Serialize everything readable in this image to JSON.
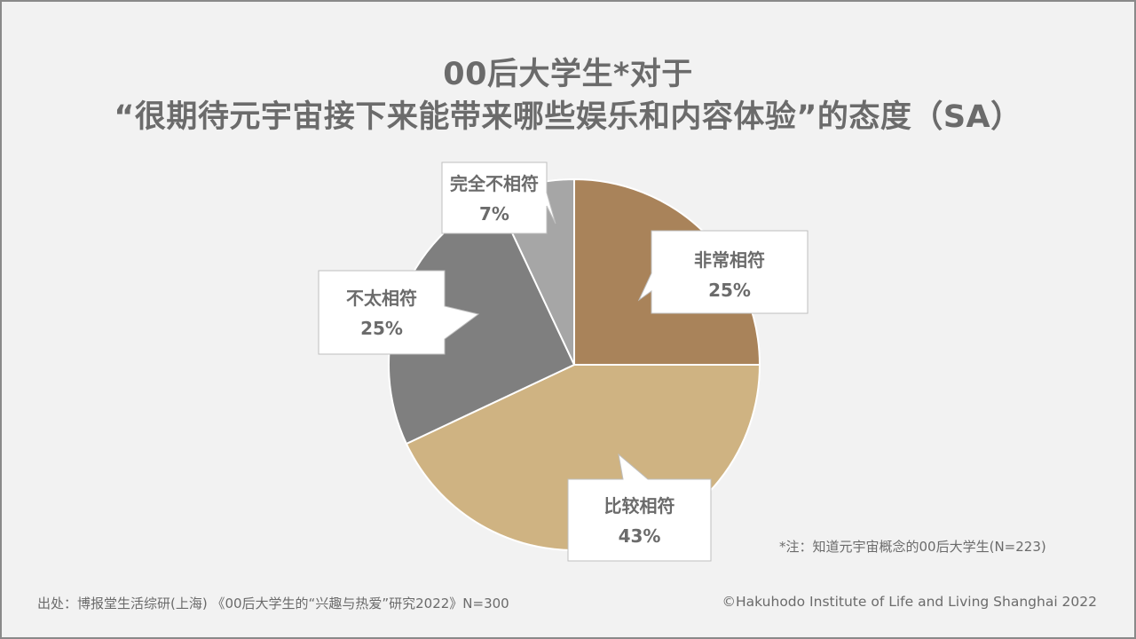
{
  "title": {
    "line1": "00后大学生*对于",
    "line2": "“很期待元宇宙接下来能带来哪些娱乐和内容体验”的态度（SA）"
  },
  "chart_data": {
    "type": "pie",
    "slices": [
      {
        "label": "非常相符",
        "value": 25,
        "value_label": "25%",
        "color": "#a9835a"
      },
      {
        "label": "比较相符",
        "value": 43,
        "value_label": "43%",
        "color": "#cfb382"
      },
      {
        "label": "不太相符",
        "value": 25,
        "value_label": "25%",
        "color": "#7f7f7f"
      },
      {
        "label": "完全不相符",
        "value": 7,
        "value_label": "7%",
        "color": "#a6a6a6"
      }
    ],
    "start": "12 o'clock",
    "direction": "clockwise",
    "labels": "callout boxes"
  },
  "note": "*注：知道元宇宙概念的00后大学生(N=223)",
  "footer": {
    "source": "出处：博报堂生活综研(上海) 《00后大学生的“兴趣与热爱”研究2022》N=300",
    "copyright": "©Hakuhodo Institute of Life and Living Shanghai 2022"
  }
}
